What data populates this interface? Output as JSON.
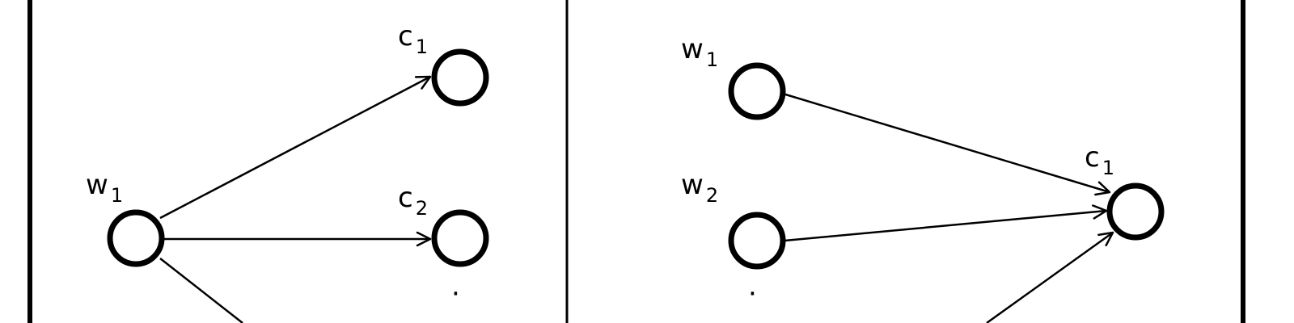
{
  "panels": [
    {
      "name": "left-panel",
      "nodes": [
        {
          "id": "w1",
          "letter": "w",
          "sub": "1"
        },
        {
          "id": "c1",
          "letter": "c",
          "sub": "1"
        },
        {
          "id": "c2",
          "letter": "c",
          "sub": "2"
        }
      ],
      "ellipsis": "·"
    },
    {
      "name": "right-panel",
      "nodes": [
        {
          "id": "w1",
          "letter": "w",
          "sub": "1"
        },
        {
          "id": "w2",
          "letter": "w",
          "sub": "2"
        },
        {
          "id": "c1",
          "letter": "c",
          "sub": "1"
        }
      ],
      "ellipsis": "·"
    }
  ],
  "colors": {
    "stroke": "#000000",
    "background": "#ffffff"
  }
}
